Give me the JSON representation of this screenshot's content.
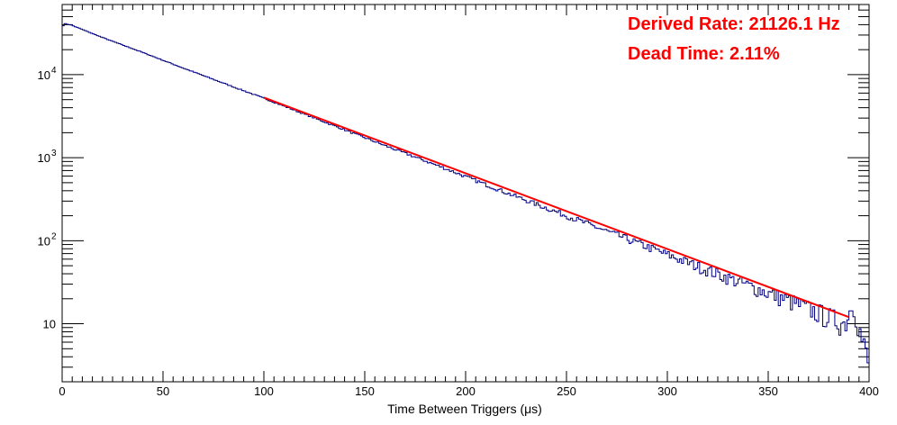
{
  "chart_data": {
    "type": "line",
    "title": "",
    "xlabel": "Time Between Triggers (μs)",
    "ylabel": "",
    "xlim": [
      0,
      400
    ],
    "ylim": [
      2,
      70000
    ],
    "y_scale": "log",
    "grid": false,
    "x_ticks": [
      {
        "value": 0,
        "label": "0"
      },
      {
        "value": 50,
        "label": "50"
      },
      {
        "value": 100,
        "label": "100"
      },
      {
        "value": 150,
        "label": "150"
      },
      {
        "value": 200,
        "label": "200"
      },
      {
        "value": 250,
        "label": "250"
      },
      {
        "value": 300,
        "label": "300"
      },
      {
        "value": 350,
        "label": "350"
      },
      {
        "value": 400,
        "label": "400"
      }
    ],
    "y_ticks": [
      {
        "value": 10,
        "label": "10"
      },
      {
        "value": 100,
        "label": "10",
        "exp": "2"
      },
      {
        "value": 1000,
        "label": "10",
        "exp": "3"
      },
      {
        "value": 10000,
        "label": "10",
        "exp": "4"
      }
    ],
    "series": [
      {
        "color": "#000080",
        "style": "histogram",
        "x": [
          0,
          1.5,
          4,
          10,
          20,
          40,
          60,
          80,
          100,
          130,
          160,
          190,
          220,
          250,
          280,
          300,
          320,
          340,
          360,
          380,
          388,
          392,
          396,
          400
        ],
        "values": [
          38000,
          41000,
          40000,
          35000,
          28000,
          18500,
          12000,
          7900,
          5200,
          2700,
          1400,
          740,
          380,
          200,
          105,
          68,
          44,
          29,
          19,
          12,
          10,
          18,
          7,
          3
        ]
      },
      {
        "color": "#ff0000",
        "style": "fit",
        "x": [
          100,
          390
        ],
        "values": [
          5300,
          12
        ]
      }
    ],
    "annotations": [
      {
        "text": "Derived Rate: 21126.1 Hz",
        "color": "#ff0000"
      },
      {
        "text": "Dead Time: 2.11%",
        "color": "#ff0000"
      }
    ]
  }
}
